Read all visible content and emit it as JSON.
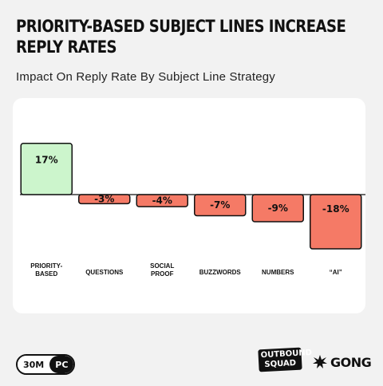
{
  "title": "PRIORITY-BASED SUBJECT LINES INCREASE REPLY RATES",
  "subtitle": "Impact On Reply Rate By Subject Line Strategy",
  "chart_data": {
    "type": "bar",
    "categories": [
      "PRIORITY-BASED",
      "QUESTIONS",
      "SOCIAL PROOF",
      "BUZZWORDS",
      "NUMBERS",
      "“AI”"
    ],
    "values": [
      17,
      -3,
      -4,
      -7,
      -9,
      -18
    ],
    "value_labels": [
      "17%",
      "-3%",
      "-4%",
      "-7%",
      "-9%",
      "-18%"
    ],
    "ylim": [
      -18,
      17
    ],
    "grid": false,
    "legend": "none",
    "colors": {
      "positive": "#ccf5cc",
      "negative": "#f57a66",
      "outline": "#111111"
    }
  },
  "footer": {
    "badge_left": "30M",
    "badge_right": "PC",
    "logo_outbound_line1": "OUTBOUND",
    "logo_outbound_line2": "SQUAD",
    "logo_gong": "GONG",
    "logo_gong_icon": "starburst-icon"
  }
}
